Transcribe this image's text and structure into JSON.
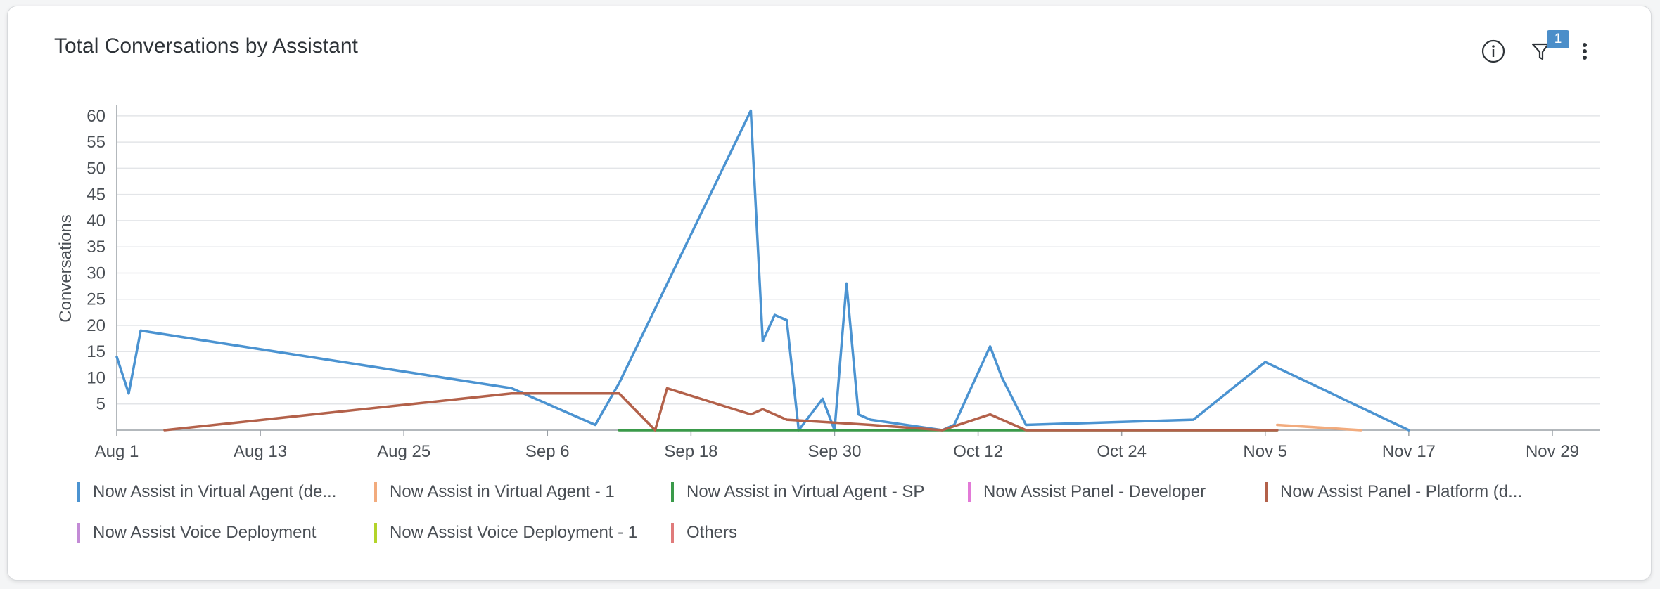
{
  "card": {
    "title": "Total Conversations by Assistant",
    "info_icon": "info-icon",
    "filter_icon": "filter-icon",
    "filter_count": "1",
    "more_icon": "more-vertical-icon"
  },
  "chart_data": {
    "type": "line",
    "title": "Total Conversations by Assistant",
    "xlabel": "",
    "ylabel": "Conversations",
    "ylim": [
      0,
      62
    ],
    "yticks": [
      5,
      10,
      15,
      20,
      25,
      30,
      35,
      40,
      45,
      50,
      55,
      60
    ],
    "x_range": [
      "2024-08-01",
      "2024-12-03"
    ],
    "xticks": [
      {
        "date": "2024-08-01",
        "label": "Aug 1"
      },
      {
        "date": "2024-08-13",
        "label": "Aug 13"
      },
      {
        "date": "2024-08-25",
        "label": "Aug 25"
      },
      {
        "date": "2024-09-06",
        "label": "Sep 6"
      },
      {
        "date": "2024-09-18",
        "label": "Sep 18"
      },
      {
        "date": "2024-09-30",
        "label": "Sep 30"
      },
      {
        "date": "2024-10-12",
        "label": "Oct 12"
      },
      {
        "date": "2024-10-24",
        "label": "Oct 24"
      },
      {
        "date": "2024-11-05",
        "label": "Nov 5"
      },
      {
        "date": "2024-11-17",
        "label": "Nov 17"
      },
      {
        "date": "2024-11-29",
        "label": "Nov 29"
      }
    ],
    "grid": true,
    "legend_position": "bottom",
    "series": [
      {
        "name": "Now Assist in Virtual Agent (de...",
        "color": "#4b93d1",
        "points": [
          [
            "2024-08-01",
            14
          ],
          [
            "2024-08-02",
            7
          ],
          [
            "2024-08-03",
            19
          ],
          [
            "2024-09-03",
            8
          ],
          [
            "2024-09-10",
            1
          ],
          [
            "2024-09-12",
            9
          ],
          [
            "2024-09-23",
            61
          ],
          [
            "2024-09-24",
            17
          ],
          [
            "2024-09-25",
            22
          ],
          [
            "2024-09-26",
            21
          ],
          [
            "2024-09-27",
            0
          ],
          [
            "2024-09-29",
            6
          ],
          [
            "2024-09-30",
            0
          ],
          [
            "2024-10-01",
            28
          ],
          [
            "2024-10-02",
            3
          ],
          [
            "2024-10-03",
            2
          ],
          [
            "2024-10-09",
            0
          ],
          [
            "2024-10-10",
            1
          ],
          [
            "2024-10-13",
            16
          ],
          [
            "2024-10-14",
            10
          ],
          [
            "2024-10-16",
            1
          ],
          [
            "2024-10-30",
            2
          ],
          [
            "2024-11-05",
            13
          ],
          [
            "2024-11-17",
            0
          ]
        ]
      },
      {
        "name": "Now Assist in Virtual Agent - 1",
        "color": "#f2ab7d",
        "points": [
          [
            "2024-11-06",
            1
          ],
          [
            "2024-11-13",
            0
          ]
        ]
      },
      {
        "name": "Now Assist in Virtual Agent - SP",
        "color": "#3a9a4a",
        "points": [
          [
            "2024-09-12",
            0
          ],
          [
            "2024-11-06",
            0
          ]
        ]
      },
      {
        "name": "Now Assist Panel - Developer",
        "color": "#e27ad7",
        "points": []
      },
      {
        "name": "Now Assist Panel - Platform (d...",
        "color": "#b3614a",
        "points": [
          [
            "2024-08-05",
            0
          ],
          [
            "2024-09-03",
            7
          ],
          [
            "2024-09-07",
            7
          ],
          [
            "2024-09-12",
            7
          ],
          [
            "2024-09-15",
            0
          ],
          [
            "2024-09-16",
            8
          ],
          [
            "2024-09-23",
            3
          ],
          [
            "2024-09-24",
            4
          ],
          [
            "2024-09-26",
            2
          ],
          [
            "2024-10-03",
            1
          ],
          [
            "2024-10-09",
            0
          ],
          [
            "2024-10-13",
            3
          ],
          [
            "2024-10-16",
            0
          ],
          [
            "2024-11-06",
            0
          ]
        ]
      },
      {
        "name": "Now Assist Voice Deployment",
        "color": "#c38bd6",
        "points": []
      },
      {
        "name": "Now Assist Voice Deployment - 1",
        "color": "#b3d42a",
        "points": []
      },
      {
        "name": "Others",
        "color": "#e07b7b",
        "points": []
      }
    ]
  }
}
